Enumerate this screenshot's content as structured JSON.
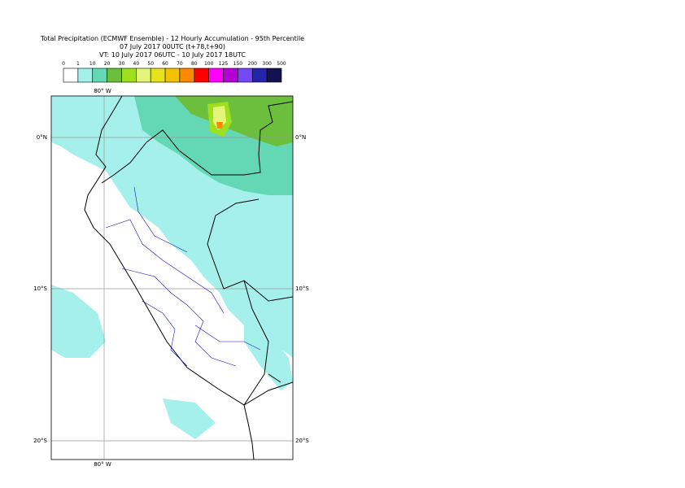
{
  "title": [
    "Total Precipitation (ECMWF Ensemble) - 12 Hourly Accumulation - 95th Percentile",
    "07 July 2017 00UTC (t+78,t+90)",
    "VT: 10 July 2017 06UTC - 10 July 2017 18UTC"
  ],
  "legend": {
    "labels": [
      "0",
      "1",
      "10",
      "20",
      "30",
      "40",
      "50",
      "60",
      "70",
      "80",
      "100",
      "125",
      "150",
      "200",
      "300",
      "500"
    ],
    "colors": [
      "#ffffff",
      "#a6f0ec",
      "#64d8b4",
      "#6cbf3c",
      "#9ee01e",
      "#e4f67a",
      "#e6e21e",
      "#f2c200",
      "#ff8a00",
      "#ff0000",
      "#ff00ff",
      "#b400d4",
      "#7448f4",
      "#2424aa",
      "#12124e"
    ]
  },
  "axes": {
    "top": "80° W",
    "bottom": "80° W",
    "left": [
      "0°N",
      "10°S",
      "20°S"
    ],
    "right": [
      "0°N",
      "10°S",
      "20°S"
    ]
  }
}
